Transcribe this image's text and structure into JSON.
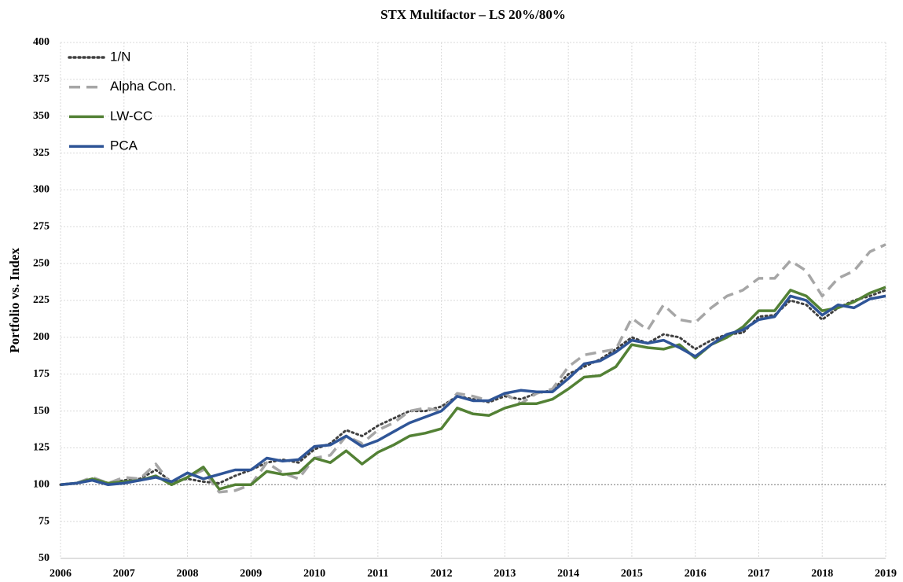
{
  "chart_data": {
    "type": "line",
    "title": "STX Multifactor – LS 20%/80%",
    "ylabel": "Portfolio vs. Index",
    "x": [
      2006,
      2006.25,
      2006.5,
      2006.75,
      2007,
      2007.25,
      2007.5,
      2007.75,
      2008,
      2008.25,
      2008.5,
      2008.75,
      2009,
      2009.25,
      2009.5,
      2009.75,
      2010,
      2010.25,
      2010.5,
      2010.75,
      2011,
      2011.25,
      2011.5,
      2011.75,
      2012,
      2012.25,
      2012.5,
      2012.75,
      2013,
      2013.25,
      2013.5,
      2013.75,
      2014,
      2014.25,
      2014.5,
      2014.75,
      2015,
      2015.25,
      2015.5,
      2015.75,
      2016,
      2016.25,
      2016.5,
      2016.75,
      2017,
      2017.25,
      2017.5,
      2017.75,
      2018,
      2018.25,
      2018.5,
      2018.75,
      2019
    ],
    "series": [
      {
        "name": "1/N",
        "color": "#404040",
        "style": "dotted",
        "values": [
          100,
          101,
          104,
          101,
          103,
          104,
          110,
          102,
          104,
          102,
          101,
          106,
          110,
          115,
          117,
          115,
          124,
          128,
          137,
          133,
          140,
          145,
          150,
          150,
          153,
          160,
          158,
          156,
          160,
          158,
          162,
          164,
          175,
          180,
          185,
          192,
          200,
          196,
          202,
          200,
          192,
          198,
          202,
          203,
          214,
          215,
          225,
          222,
          212,
          220,
          225,
          228,
          232
        ]
      },
      {
        "name": "Alpha Con.",
        "color": "#a6a6a6",
        "style": "dashed",
        "values": [
          100,
          101,
          105,
          101,
          105,
          104,
          114,
          100,
          105,
          110,
          95,
          96,
          100,
          115,
          108,
          104,
          118,
          120,
          133,
          128,
          137,
          142,
          150,
          152,
          150,
          162,
          160,
          157,
          162,
          155,
          162,
          165,
          180,
          188,
          190,
          192,
          213,
          205,
          222,
          212,
          210,
          220,
          228,
          232,
          240,
          240,
          252,
          245,
          228,
          240,
          245,
          258,
          263
        ]
      },
      {
        "name": "LW-CC",
        "color": "#538135",
        "style": "solid",
        "values": [
          100,
          101,
          104,
          101,
          102,
          103,
          106,
          100,
          105,
          112,
          97,
          100,
          100,
          109,
          107,
          108,
          118,
          115,
          123,
          114,
          122,
          127,
          133,
          135,
          138,
          152,
          148,
          147,
          152,
          155,
          155,
          158,
          165,
          173,
          174,
          180,
          195,
          193,
          192,
          195,
          186,
          195,
          200,
          207,
          218,
          218,
          232,
          228,
          218,
          220,
          224,
          230,
          234
        ]
      },
      {
        "name": "PCA",
        "color": "#2f5597",
        "style": "solid",
        "values": [
          100,
          101,
          103,
          100,
          101,
          103,
          105,
          102,
          108,
          104,
          107,
          110,
          110,
          118,
          116,
          117,
          126,
          127,
          133,
          126,
          130,
          136,
          142,
          146,
          150,
          160,
          157,
          157,
          162,
          164,
          163,
          163,
          172,
          182,
          184,
          190,
          198,
          196,
          198,
          193,
          187,
          195,
          202,
          205,
          212,
          214,
          228,
          225,
          215,
          222,
          220,
          226,
          228
        ]
      }
    ],
    "xlim": [
      2006,
      2019
    ],
    "xticks": [
      2006,
      2007,
      2008,
      2009,
      2010,
      2011,
      2012,
      2013,
      2014,
      2015,
      2016,
      2017,
      2018,
      2019
    ],
    "ylim": [
      50,
      400
    ],
    "yticks": [
      50,
      75,
      100,
      125,
      150,
      175,
      200,
      225,
      250,
      275,
      300,
      325,
      350,
      375,
      400
    ],
    "hline": 100,
    "grid": true,
    "legend": "upper left"
  }
}
